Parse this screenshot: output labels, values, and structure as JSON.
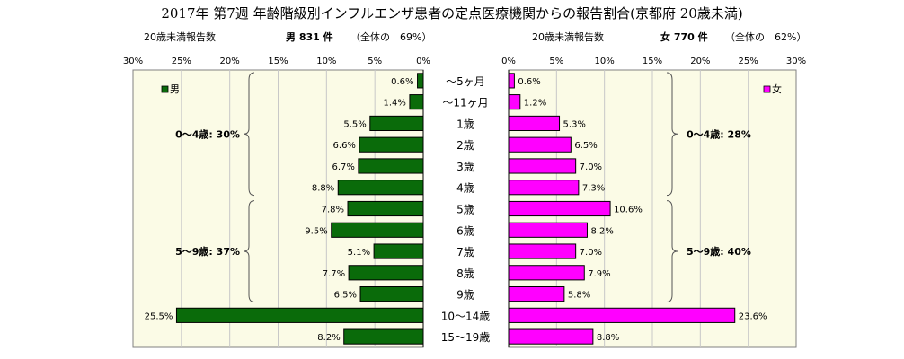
{
  "title": "2017年 第7週 年齢階級別インフルエンザ患者の定点医療機関からの報告割合(京都府 20歳未満)",
  "colors": {
    "male": "#0a6b0a",
    "female": "#ff00ff",
    "panel_bg": "#fbfbe6",
    "grid": "#c8c8c8"
  },
  "chart_data": {
    "type": "bar",
    "categories": [
      "～5ヶ月",
      "～11ヶ月",
      "1歳",
      "2歳",
      "3歳",
      "4歳",
      "5歳",
      "6歳",
      "7歳",
      "8歳",
      "9歳",
      "10～14歳",
      "15～19歳"
    ],
    "xlim": [
      0,
      30
    ],
    "ticks": [
      0,
      5,
      10,
      15,
      20,
      25,
      30
    ],
    "series": [
      {
        "key": "male",
        "name": "男",
        "header_count_label": "20歳未満報告数",
        "header_summary": "男 831 件",
        "header_share": "（全体の　69%）",
        "values": [
          0.6,
          1.4,
          5.5,
          6.6,
          6.7,
          8.8,
          7.8,
          9.5,
          5.1,
          7.7,
          6.5,
          25.5,
          8.2
        ],
        "value_labels": [
          "0.6%",
          "1.4%",
          "5.5%",
          "6.6%",
          "6.7%",
          "8.8%",
          "7.8%",
          "9.5%",
          "5.1%",
          "7.7%",
          "6.5%",
          "25.5%",
          "8.2%"
        ],
        "groups": [
          {
            "label": "0～4歳: 30%",
            "from": 0,
            "to": 5
          },
          {
            "label": "5～9歳: 37%",
            "from": 6,
            "to": 10
          }
        ]
      },
      {
        "key": "female",
        "name": "女",
        "header_count_label": "20歳未満報告数",
        "header_summary": "女 770 件",
        "header_share": "（全体の　62%）",
        "values": [
          0.6,
          1.2,
          5.3,
          6.5,
          7.0,
          7.3,
          10.6,
          8.2,
          7.0,
          7.9,
          5.8,
          23.6,
          8.8
        ],
        "value_labels": [
          "0.6%",
          "1.2%",
          "5.3%",
          "6.5%",
          "7.0%",
          "7.3%",
          "10.6%",
          "8.2%",
          "7.0%",
          "7.9%",
          "5.8%",
          "23.6%",
          "8.8%"
        ],
        "groups": [
          {
            "label": "0～4歳: 28%",
            "from": 0,
            "to": 5
          },
          {
            "label": "5～9歳: 40%",
            "from": 6,
            "to": 10
          }
        ]
      }
    ]
  }
}
